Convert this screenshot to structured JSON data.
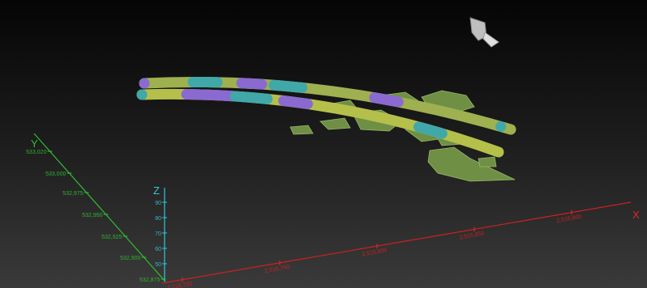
{
  "axes": {
    "x": {
      "label": "X",
      "ticks": [
        "2,515,700",
        "2,515,750",
        "2,515,800",
        "2,515,850",
        "2,515,900"
      ]
    },
    "y": {
      "label": "Y",
      "ticks": [
        "533,020",
        "533,000",
        "532,975",
        "532,950",
        "532,925",
        "532,900",
        "532,875"
      ]
    },
    "z": {
      "label": "Z",
      "ticks": [
        "90",
        "80",
        "70",
        "60",
        "50"
      ]
    }
  }
}
